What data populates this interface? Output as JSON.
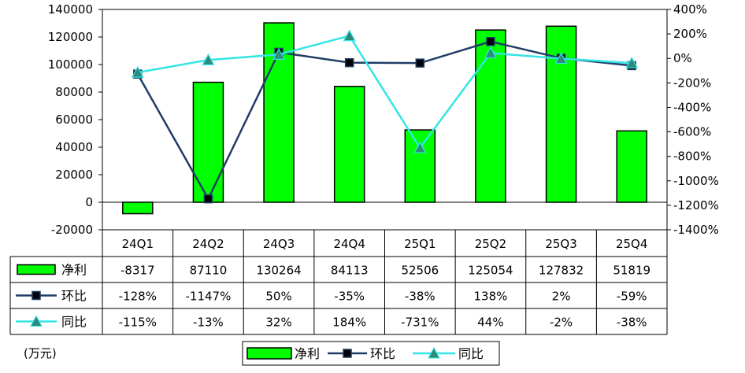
{
  "chart_data": {
    "type": "bar+line",
    "categories": [
      "24Q1",
      "24Q2",
      "24Q3",
      "24Q4",
      "25Q1",
      "25Q2",
      "25Q3",
      "25Q4"
    ],
    "series": [
      {
        "name": "净利",
        "kind": "bar",
        "axis": "left",
        "color": "#00ff00",
        "values": [
          -8317,
          87110,
          130264,
          84113,
          52506,
          125054,
          127832,
          51819
        ],
        "labels": [
          "-8317",
          "87110",
          "130264",
          "84113",
          "52506",
          "125054",
          "127832",
          "51819"
        ]
      },
      {
        "name": "环比",
        "kind": "line",
        "axis": "right",
        "color": "#1f3d66",
        "marker": "square",
        "values": [
          -128,
          -1147,
          50,
          -35,
          -38,
          138,
          2,
          -59
        ],
        "labels": [
          "-128%",
          "-1147%",
          "50%",
          "-35%",
          "-38%",
          "138%",
          "2%",
          "-59%"
        ]
      },
      {
        "name": "同比",
        "kind": "line",
        "axis": "right",
        "color": "#33e5e5",
        "marker": "triangle",
        "values": [
          -115,
          -13,
          32,
          184,
          -731,
          44,
          -2,
          -38
        ],
        "labels": [
          "-115%",
          "-13%",
          "32%",
          "184%",
          "-731%",
          "44%",
          "-2%",
          "-38%"
        ]
      }
    ],
    "y_left": {
      "range": [
        -20000,
        140000
      ],
      "ticks": [
        -20000,
        0,
        20000,
        40000,
        60000,
        80000,
        100000,
        120000,
        140000
      ],
      "tick_labels": [
        "-20000",
        "0",
        "20000",
        "40000",
        "60000",
        "80000",
        "100000",
        "120000",
        "140000"
      ]
    },
    "y_right": {
      "range": [
        -1400,
        400
      ],
      "ticks": [
        -1400,
        -1200,
        -1000,
        -800,
        -600,
        -400,
        -200,
        0,
        200,
        400
      ],
      "tick_labels": [
        "-1400%",
        "-1200%",
        "-1000%",
        "-800%",
        "-600%",
        "-400%",
        "-200%",
        "0%",
        "200%",
        "400%"
      ]
    },
    "unit_label": "(万元)",
    "grid": false,
    "legend_position": "bottom"
  }
}
